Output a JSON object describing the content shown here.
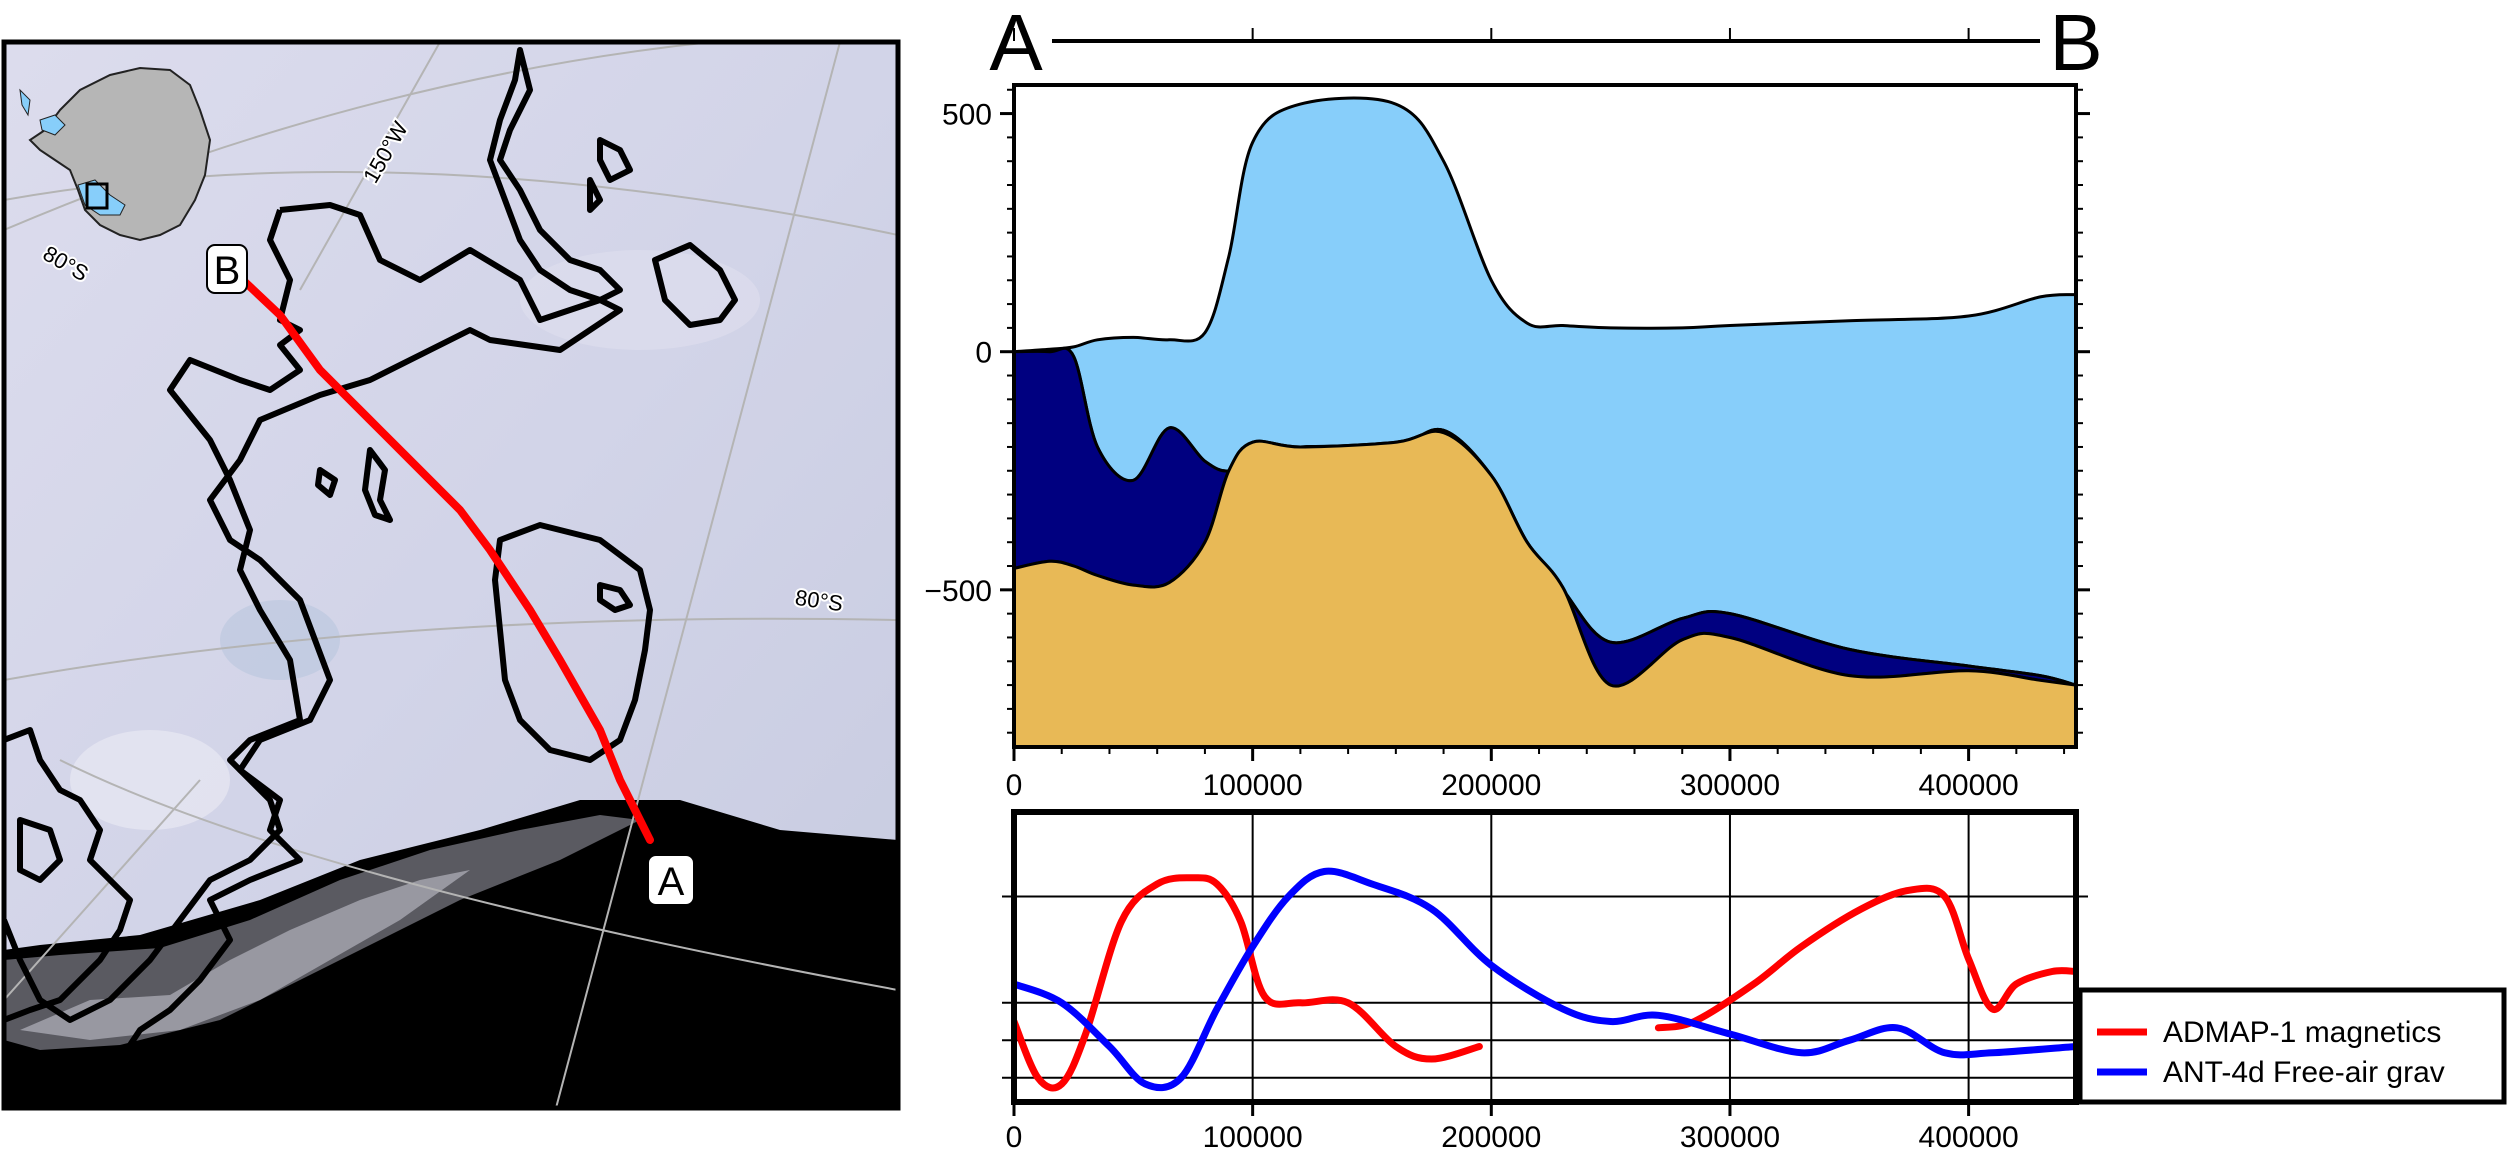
{
  "map": {
    "profile_start_label": "A",
    "profile_end_label": "B",
    "graticule_labels": [
      "150°W",
      "80°S",
      "80°S"
    ],
    "profile_line_color": "#ff0000",
    "inset": "Antarctica overview with study-area box"
  },
  "chart_data": [
    {
      "type": "area",
      "title": "",
      "start_label": "A",
      "end_label": "B",
      "xlabel": "",
      "ylabel": "",
      "xlim": [
        0,
        445000
      ],
      "ylim": [
        -830,
        560
      ],
      "x_ticks": [
        0,
        100000,
        200000,
        300000,
        400000
      ],
      "x_tick_labels": [
        "0",
        "100000",
        "200000",
        "300000",
        "400000"
      ],
      "y_ticks": [
        500,
        0,
        -500
      ],
      "y_tick_labels": [
        "500",
        "0",
        "−500"
      ],
      "layers": [
        {
          "name": "",
          "color": "#87cefa"
        },
        {
          "name": "",
          "color": "#000080"
        },
        {
          "name": "",
          "color": "#e8b956"
        }
      ],
      "x": [
        0,
        15000,
        25000,
        35000,
        50000,
        65000,
        80000,
        90000,
        100000,
        120000,
        160000,
        180000,
        200000,
        215000,
        230000,
        250000,
        280000,
        300000,
        350000,
        400000,
        430000,
        445000
      ],
      "surface": [
        0,
        5,
        10,
        25,
        30,
        25,
        40,
        200,
        440,
        520,
        520,
        400,
        150,
        60,
        55,
        50,
        50,
        55,
        65,
        75,
        115,
        120
      ],
      "ice_base": [
        0,
        0,
        -10,
        -200,
        -270,
        -160,
        -230,
        -250,
        -215,
        -200,
        -195,
        -165,
        -260,
        -400,
        -500,
        -610,
        -560,
        -550,
        -625,
        -660,
        -680,
        -700
      ],
      "bed": [
        -455,
        -440,
        -450,
        -470,
        -490,
        -485,
        -400,
        -250,
        -190,
        -200,
        -190,
        -170,
        -260,
        -400,
        -495,
        -700,
        -605,
        -600,
        -680,
        -670,
        -690,
        -700
      ]
    },
    {
      "type": "line",
      "title": "",
      "xlabel": "",
      "ylabel": "",
      "xlim": [
        0,
        445000
      ],
      "ylim": [
        -1,
        1
      ],
      "x_ticks": [
        0,
        100000,
        200000,
        300000,
        400000
      ],
      "x_tick_labels": [
        "0",
        "100000",
        "200000",
        "300000",
        "400000"
      ],
      "grid": true,
      "legend_position": "bottom-right, outside",
      "series": [
        {
          "name": "ADMAP-1 magnetics",
          "color": "#ff0000",
          "x": [
            0,
            10000,
            20000,
            30000,
            45000,
            60000,
            75000,
            85000,
            95000,
            105000,
            120000,
            140000,
            160000,
            175000,
            195000,
            null,
            270000,
            285000,
            310000,
            330000,
            355000,
            375000,
            390000,
            400000,
            410000,
            420000,
            435000,
            445000
          ],
          "y": [
            -0.5,
            -0.95,
            -1.0,
            -0.6,
            0.3,
            0.6,
            0.65,
            0.6,
            0.3,
            -0.3,
            -0.35,
            -0.35,
            -0.7,
            -0.8,
            -0.7,
            null,
            -0.55,
            -0.5,
            -0.2,
            0.1,
            0.4,
            0.55,
            0.5,
            0.0,
            -0.4,
            -0.2,
            -0.1,
            -0.1
          ]
        },
        {
          "name": "ANT-4d Free-air grav",
          "color": "#0000ff",
          "x": [
            0,
            20000,
            40000,
            55000,
            70000,
            85000,
            100000,
            115000,
            130000,
            150000,
            175000,
            200000,
            230000,
            250000,
            270000,
            300000,
            330000,
            350000,
            370000,
            390000,
            410000,
            445000
          ],
          "y": [
            -0.2,
            -0.35,
            -0.7,
            -1.0,
            -0.95,
            -0.4,
            0.1,
            0.5,
            0.7,
            0.6,
            0.4,
            -0.05,
            -0.4,
            -0.5,
            -0.45,
            -0.6,
            -0.75,
            -0.65,
            -0.55,
            -0.75,
            -0.75,
            -0.7
          ]
        }
      ]
    }
  ]
}
